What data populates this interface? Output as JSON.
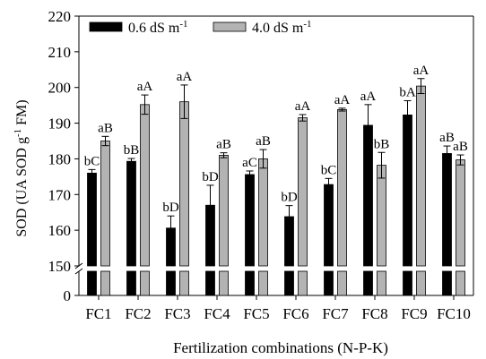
{
  "chart_data": {
    "type": "bar",
    "title": "",
    "xlabel": "Fertilization combinations (N-P-K)",
    "ylabel_main": "SOD (UA SOD g",
    "ylabel_sup": "-1",
    "ylabel_tail": " FM)",
    "categories": [
      "FC1",
      "FC2",
      "FC3",
      "FC4",
      "FC5",
      "FC6",
      "FC7",
      "FC8",
      "FC9",
      "FC10"
    ],
    "ylim": [
      150,
      220
    ],
    "yticks": [
      150,
      160,
      170,
      180,
      190,
      200,
      210,
      220
    ],
    "broken_axis_ticks": [
      0
    ],
    "grid": false,
    "legend_position": "top-left",
    "series": [
      {
        "name_main": "0.6 dS m",
        "name_sup": "-1",
        "color": "#000000",
        "values": [
          176.0,
          179.3,
          160.6,
          167.0,
          175.6,
          163.8,
          172.8,
          189.4,
          192.3,
          181.5
        ],
        "errors": [
          1.0,
          0.8,
          3.4,
          5.6,
          1.0,
          3.1,
          1.7,
          5.8,
          4.0,
          2.1
        ],
        "labels": [
          "bC",
          "bB",
          "bD",
          "bD",
          "aC",
          "bD",
          "bC",
          "aA",
          "bA",
          "aB"
        ]
      },
      {
        "name_main": "4.0 dS m",
        "name_sup": "-1",
        "color": "#b3b3b3",
        "values": [
          185.0,
          195.2,
          196.0,
          181.0,
          180.0,
          191.5,
          193.8,
          178.2,
          200.4,
          179.7
        ],
        "errors": [
          1.3,
          2.7,
          4.7,
          0.7,
          2.6,
          0.9,
          0.4,
          3.6,
          2.1,
          1.4
        ],
        "labels": [
          "aB",
          "aA",
          "aA",
          "aB",
          "aB",
          "aA",
          "aA",
          "bB",
          "aA",
          "aB"
        ]
      }
    ]
  }
}
